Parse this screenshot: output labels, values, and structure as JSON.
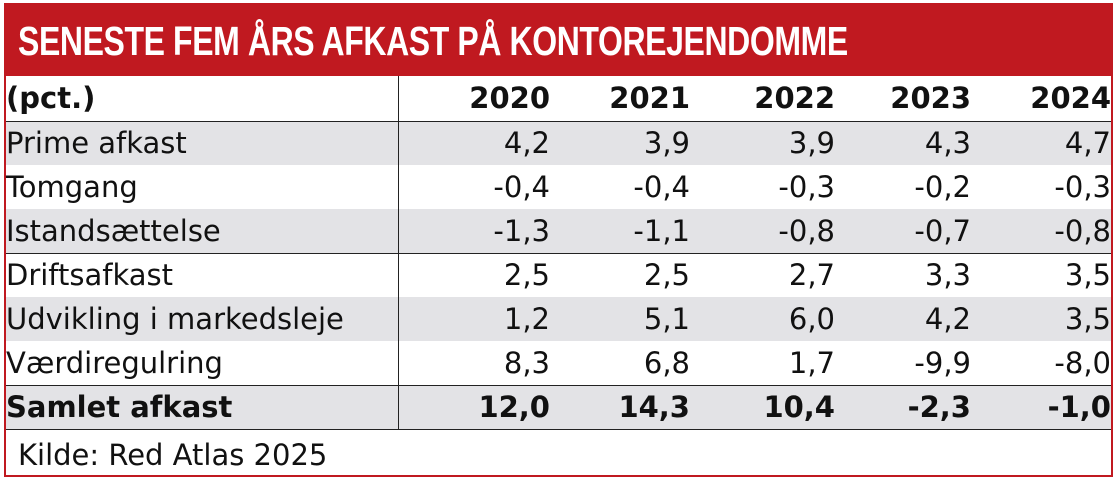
{
  "title": "SENESTE FEM ÅRS AFKAST PÅ KONTOREJENDOMME",
  "header": {
    "unit": "(pct.)",
    "years": [
      "2020",
      "2021",
      "2022",
      "2023",
      "2024"
    ]
  },
  "rows": [
    {
      "label": "Prime afkast",
      "values": [
        "4,2",
        "3,9",
        "3,9",
        "4,3",
        "4,7"
      ]
    },
    {
      "label": "Tomgang",
      "values": [
        "-0,4",
        "-0,4",
        "-0,3",
        "-0,2",
        "-0,3"
      ]
    },
    {
      "label": "Istandsættelse",
      "values": [
        "-1,3",
        "-1,1",
        "-0,8",
        "-0,7",
        "-0,8"
      ]
    },
    {
      "label": "Driftsafkast",
      "values": [
        "2,5",
        "2,5",
        "2,7",
        "3,3",
        "3,5"
      ]
    },
    {
      "label": "Udvikling i markedsleje",
      "values": [
        "1,2",
        "5,1",
        "6,0",
        "4,2",
        "3,5"
      ]
    },
    {
      "label": "Værdiregulring",
      "values": [
        "8,3",
        "6,8",
        "1,7",
        "-9,9",
        "-8,0"
      ]
    }
  ],
  "total": {
    "label": "Samlet afkast",
    "values": [
      "12,0",
      "14,3",
      "10,4",
      "-2,3",
      "-1,0"
    ]
  },
  "source": "Kilde: Red Atlas 2025",
  "colors": {
    "accent": "#c01920",
    "shade": "#e3e3e6"
  }
}
